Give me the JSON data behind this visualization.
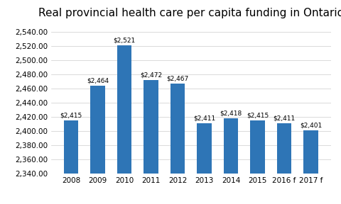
{
  "title": "Real provincial health care per capita funding in Ontario",
  "categories": [
    "2008",
    "2009",
    "2010",
    "2011",
    "2012",
    "2013",
    "2014",
    "2015",
    "2016 f",
    "2017 f"
  ],
  "values": [
    2415,
    2464,
    2521,
    2472,
    2467,
    2411,
    2418,
    2415,
    2411,
    2401
  ],
  "labels": [
    "$2,415",
    "$2,464",
    "$2,521",
    "$2,472",
    "$2,467",
    "$2,411",
    "$2,418",
    "$2,415",
    "$2,411",
    "$2,401"
  ],
  "bar_color": "#2E75B6",
  "background_color": "#FFFFFF",
  "ylim": [
    2340,
    2550
  ],
  "yticks": [
    2340,
    2360,
    2380,
    2400,
    2420,
    2440,
    2460,
    2480,
    2500,
    2520,
    2540
  ],
  "title_fontsize": 11,
  "label_fontsize": 6.5,
  "tick_fontsize": 7.5,
  "bar_width": 0.55
}
